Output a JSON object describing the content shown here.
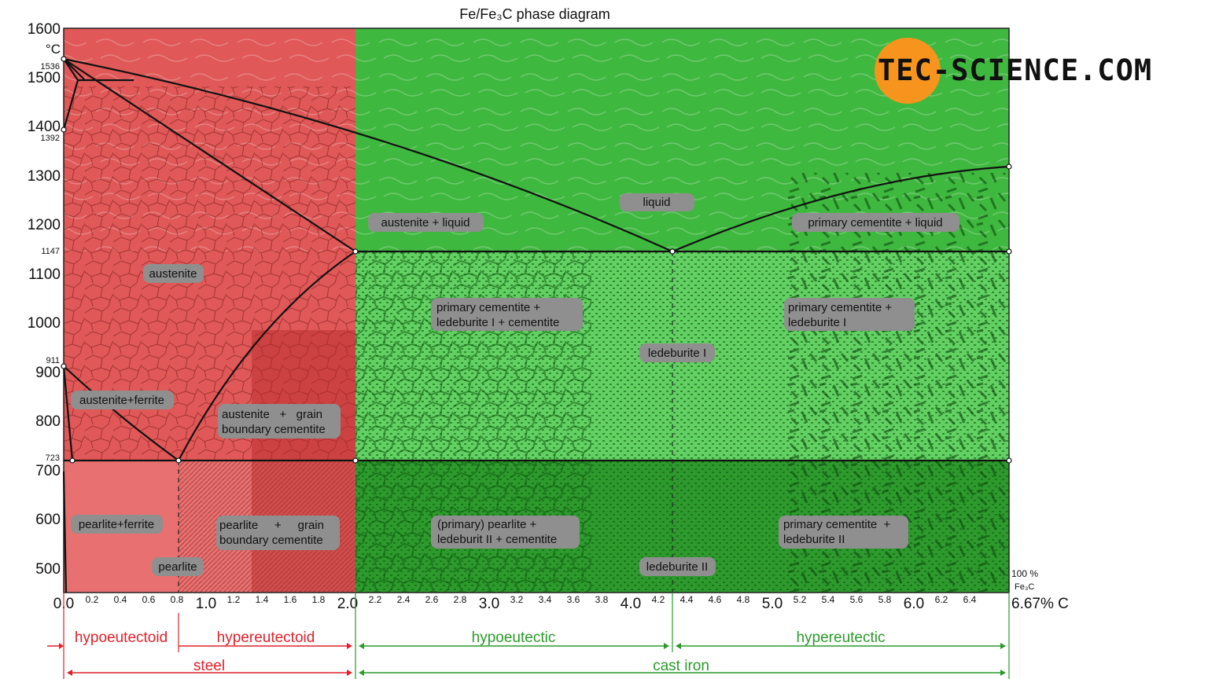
{
  "title": "Fe/Fe₃C phase diagram",
  "y_axis": {
    "unit": "°C",
    "tick_labels": [
      "1600",
      "1500",
      "1400",
      "1300",
      "1200",
      "1100",
      "1000",
      "900",
      "800",
      "700",
      "600",
      "500"
    ],
    "special_labels": [
      "1536",
      "1392",
      "1147",
      "911",
      "723"
    ]
  },
  "x_axis": {
    "major_labels": [
      "0.0",
      "1.0",
      "2.0",
      "3.0",
      "4.0",
      "5.0",
      "6.0"
    ],
    "minor_labels": [
      "0.2",
      "0.4",
      "0.6",
      "0.8",
      "1.2",
      "1.4",
      "1.6",
      "1.8",
      "2.2",
      "2.4",
      "2.6",
      "2.8",
      "3.2",
      "3.4",
      "3.6",
      "3.8",
      "4.2",
      "4.4",
      "4.6",
      "4.8",
      "5.2",
      "5.4",
      "5.6",
      "5.8",
      "6.2",
      "6.4"
    ],
    "end_label": "6.67% C",
    "right_note_1": "100 %",
    "right_note_2": "Fe₃C"
  },
  "region_labels": {
    "liquid": "liquid",
    "austenite_liquid": "austenite + liquid",
    "cementite_liquid": "primary cementite + liquid",
    "austenite": "austenite",
    "austenite_ferrite": "austenite+ferrite",
    "austenite_grain_1": "austenite   +   grain",
    "austenite_grain_2": "boundary cementite",
    "ledeb_hypo_1": "primary cementite +",
    "ledeb_hypo_2": "ledeburite I + cementite",
    "ledeburite_1": "ledeburite I",
    "ledeb_hyper_1": "primary cementite +",
    "ledeb_hyper_2": "ledeburite I",
    "pearlite_ferrite": "pearlite+ferrite",
    "pearlite": "pearlite",
    "pearlite_grain_1": "pearlite     +     grain",
    "pearlite_grain_2": "boundary cementite",
    "pearlite_ledeb2_1": "(primary) pearlite +",
    "pearlite_ledeb2_2": "ledeburit II + cementite",
    "ledeburite_2": "ledeburite II",
    "cem_ledeb2_1": "primary cementite  +",
    "cem_ledeb2_2": "ledeburite II"
  },
  "classification": {
    "hypoeutectoid": "hypoeutectoid",
    "hypereutectoid": "hypereutectoid",
    "hypoeutectic": "hypoeutectic",
    "hypereutectic": "hypereutectic",
    "steel": "steel",
    "cast_iron": "cast iron"
  },
  "logo": "TEC-SCIENCE.COM",
  "colors": {
    "steel": "#e05858",
    "cast_iron": "#3fb83f",
    "steel_arrow": "#e0202a",
    "cast_iron_arrow": "#2a9a2a",
    "label_box": "#8f8f8f",
    "logo_orange": "#f7941d"
  }
}
